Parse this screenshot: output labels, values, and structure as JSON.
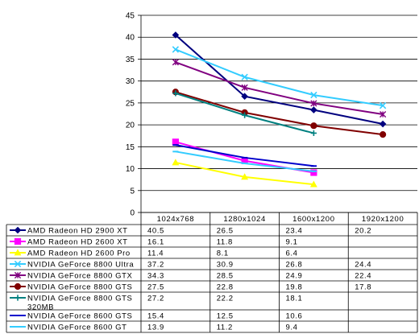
{
  "chart_data": {
    "type": "line",
    "title": "",
    "xlabel": "",
    "ylabel": "",
    "categories": [
      "1024x768",
      "1280x1024",
      "1600x1200",
      "1920x1200"
    ],
    "ylim": [
      0,
      45
    ],
    "yticks": [
      0,
      5,
      10,
      15,
      20,
      25,
      30,
      35,
      40,
      45
    ],
    "grid": "horizontal",
    "legend": "data-table-below",
    "series": [
      {
        "name": "AMD Radeon HD 2900 XT",
        "values": [
          40.5,
          26.5,
          23.4,
          20.2
        ],
        "labels": [
          "40.5",
          "26.5",
          "23.4",
          "20.2"
        ],
        "color": "#00007f",
        "marker": "diamond"
      },
      {
        "name": "AMD Radeon HD 2600 XT",
        "values": [
          16.1,
          11.8,
          9.1,
          null
        ],
        "labels": [
          "16.1",
          "11.8",
          "9.1",
          ""
        ],
        "color": "#ff00ff",
        "marker": "square"
      },
      {
        "name": "AMD Radeon HD 2600 Pro",
        "values": [
          11.4,
          8.1,
          6.4,
          null
        ],
        "labels": [
          "11.4",
          "8.1",
          "6.4",
          ""
        ],
        "color": "#ffff00",
        "marker": "triangle"
      },
      {
        "name": "NVIDIA GeForce 8800 Ultra",
        "values": [
          37.2,
          30.9,
          26.8,
          24.4
        ],
        "labels": [
          "37.2",
          "30.9",
          "26.8",
          "24.4"
        ],
        "color": "#33ccff",
        "marker": "x"
      },
      {
        "name": "NVIDIA GeForce 8800 GTX",
        "values": [
          34.3,
          28.5,
          24.9,
          22.4
        ],
        "labels": [
          "34.3",
          "28.5",
          "24.9",
          "22.4"
        ],
        "color": "#800080",
        "marker": "star"
      },
      {
        "name": "NVIDIA GeForce 8800 GTS",
        "values": [
          27.5,
          22.8,
          19.8,
          17.8
        ],
        "labels": [
          "27.5",
          "22.8",
          "19.8",
          "17.8"
        ],
        "color": "#800000",
        "marker": "circle"
      },
      {
        "name": "NVIDIA GeForce 8800 GTS 320MB",
        "values": [
          27.2,
          22.2,
          18.1,
          null
        ],
        "labels": [
          "27.2",
          "22.2",
          "18.1",
          ""
        ],
        "color": "#008080",
        "marker": "plus"
      },
      {
        "name": "NVIDIA GeForce 8600 GTS",
        "values": [
          15.4,
          12.5,
          10.6,
          null
        ],
        "labels": [
          "15.4",
          "12.5",
          "10.6",
          ""
        ],
        "color": "#0000cc",
        "marker": "dash"
      },
      {
        "name": "NVIDIA GeForce 8600 GT",
        "values": [
          13.9,
          11.2,
          9.4,
          null
        ],
        "labels": [
          "13.9",
          "11.2",
          "9.4",
          ""
        ],
        "color": "#33ccff",
        "marker": "dash"
      }
    ]
  }
}
